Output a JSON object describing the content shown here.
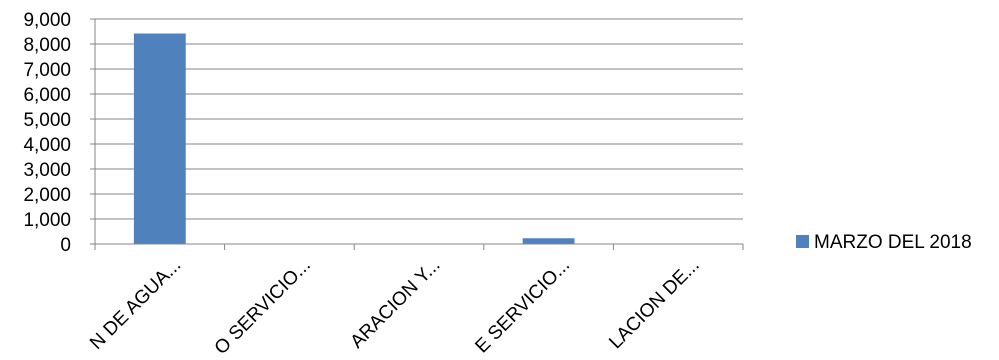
{
  "chart_data": {
    "type": "bar",
    "categories": [
      "N DE AGUA...",
      "O SERVICIO...",
      "ARACION Y...",
      "E SERVICIO...",
      "LACION DE..."
    ],
    "series": [
      {
        "name": "MARZO DEL 2018",
        "values": [
          8420,
          0,
          0,
          230,
          0
        ],
        "color": "#4F81BD"
      }
    ],
    "ylim": [
      0,
      9000
    ],
    "yticks": [
      "0",
      "1,000",
      "2,000",
      "3,000",
      "4,000",
      "5,000",
      "6,000",
      "7,000",
      "8,000",
      "9,000"
    ],
    "grid": true,
    "legend_position": "right",
    "title": "",
    "xlabel": "",
    "ylabel": ""
  }
}
